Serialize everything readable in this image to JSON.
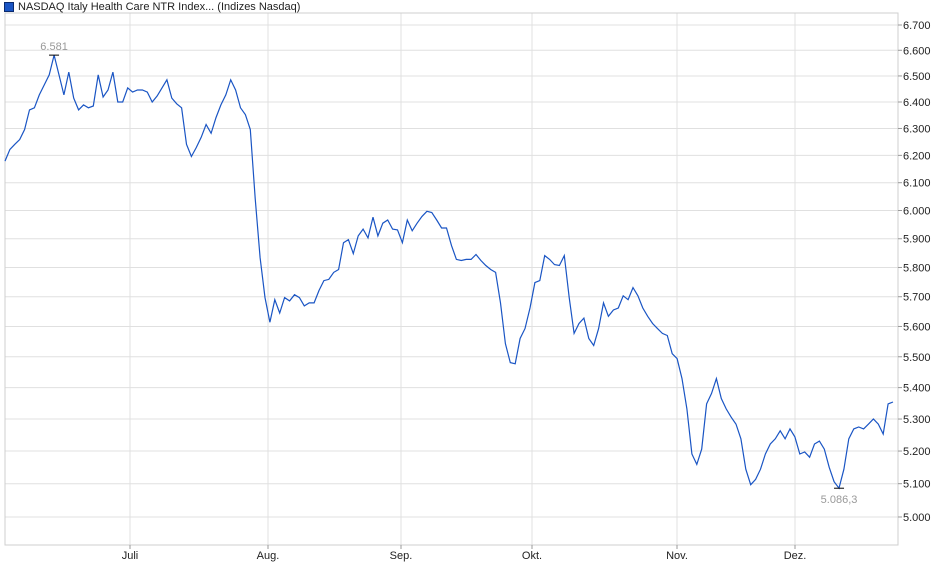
{
  "chart_data": {
    "type": "line",
    "title": "NASDAQ Italy Health Care NTR Index... (Indizes Nasdaq)",
    "series_color": "#1a55c4",
    "y_scale": "log",
    "ylim": [
      4920,
      6750
    ],
    "grid": true,
    "y_ticks": [
      "6.700",
      "6.600",
      "6.500",
      "6.400",
      "6.300",
      "6.200",
      "6.100",
      "6.000",
      "5.900",
      "5.800",
      "5.700",
      "5.600",
      "5.500",
      "5.400",
      "5.300",
      "5.200",
      "5.100",
      "5.000"
    ],
    "y_tick_values": [
      6700,
      6600,
      6500,
      6400,
      6300,
      6200,
      6100,
      6000,
      5900,
      5800,
      5700,
      5600,
      5500,
      5400,
      5300,
      5200,
      5100,
      5000
    ],
    "x_ticks": [
      "Juli",
      "Aug.",
      "Sep.",
      "Okt.",
      "Nov.",
      "Dez."
    ],
    "annotations": {
      "max_label": "6.581",
      "min_label": "5.086,3"
    },
    "values": [
      6179,
      6222,
      6241,
      6259,
      6296,
      6370,
      6378,
      6427,
      6465,
      6504,
      6581,
      6504,
      6427,
      6515,
      6415,
      6370,
      6389,
      6378,
      6385,
      6504,
      6419,
      6446,
      6515,
      6400,
      6400,
      6454,
      6438,
      6446,
      6446,
      6438,
      6400,
      6423,
      6454,
      6485,
      6415,
      6393,
      6378,
      6241,
      6196,
      6229,
      6267,
      6315,
      6282,
      6341,
      6389,
      6427,
      6485,
      6446,
      6378,
      6352,
      6296,
      6043,
      5834,
      5697,
      5614,
      5690,
      5645,
      5697,
      5686,
      5707,
      5697,
      5669,
      5679,
      5679,
      5721,
      5755,
      5759,
      5783,
      5793,
      5886,
      5897,
      5848,
      5910,
      5934,
      5903,
      5976,
      5910,
      5955,
      5966,
      5934,
      5931,
      5886,
      5966,
      5928,
      5955,
      5979,
      5997,
      5993,
      5966,
      5938,
      5938,
      5876,
      5828,
      5824,
      5828,
      5828,
      5845,
      5824,
      5807,
      5793,
      5783,
      5679,
      5543,
      5481,
      5477,
      5560,
      5593,
      5662,
      5748,
      5755,
      5841,
      5828,
      5810,
      5807,
      5841,
      5697,
      5577,
      5610,
      5628,
      5560,
      5537,
      5593,
      5679,
      5634,
      5655,
      5662,
      5703,
      5690,
      5731,
      5703,
      5662,
      5634,
      5610,
      5593,
      5577,
      5570,
      5510,
      5494,
      5429,
      5332,
      5191,
      5159,
      5206,
      5348,
      5381,
      5429,
      5365,
      5332,
      5306,
      5284,
      5238,
      5144,
      5097,
      5113,
      5144,
      5191,
      5222,
      5238,
      5263,
      5238,
      5269,
      5244,
      5191,
      5197,
      5181,
      5222,
      5231,
      5206,
      5150,
      5106,
      5086.3,
      5144,
      5238,
      5269,
      5275,
      5269,
      5284,
      5300,
      5284,
      5253,
      5348,
      5354
    ]
  }
}
